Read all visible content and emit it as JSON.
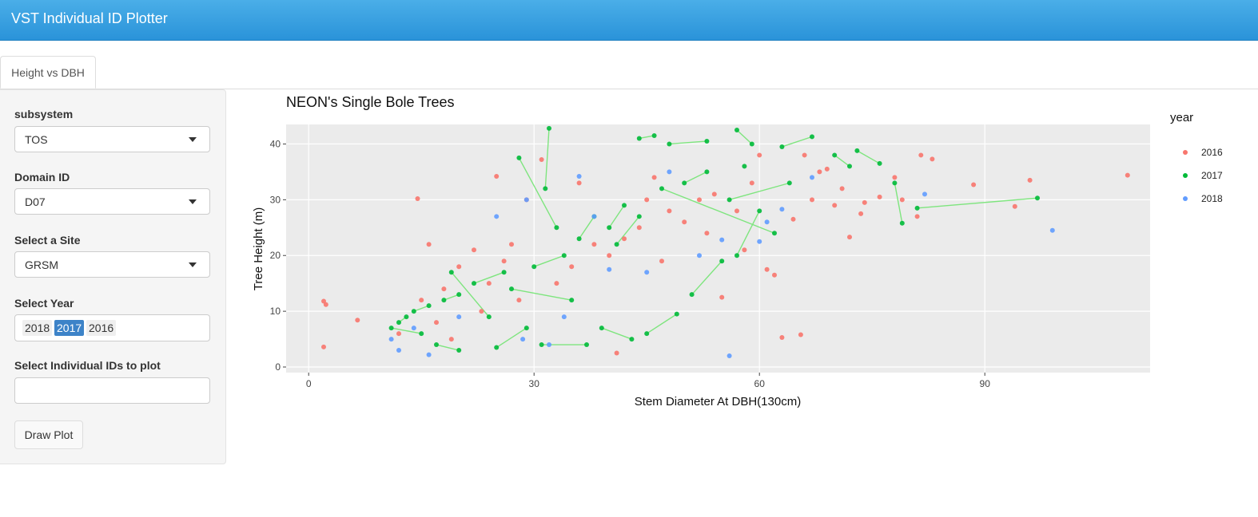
{
  "app": {
    "title": "VST Individual ID Plotter"
  },
  "tabs": [
    {
      "label": "Height vs DBH"
    }
  ],
  "sidebar": {
    "subsystem": {
      "label": "subsystem",
      "value": "TOS"
    },
    "domain": {
      "label": "Domain ID",
      "value": "D07"
    },
    "site": {
      "label": "Select a Site",
      "value": "GRSM"
    },
    "year": {
      "label": "Select Year",
      "chips": [
        "2018",
        "2017",
        "2016"
      ],
      "active": "2017"
    },
    "ids": {
      "label": "Select Individual IDs to plot",
      "value": ""
    },
    "draw_button": "Draw Plot"
  },
  "chart_data": {
    "type": "scatter",
    "title": "NEON's Single Bole Trees",
    "xlabel": "Stem Diameter At DBH(130cm)",
    "ylabel": "Tree Height (m)",
    "xlim": [
      -3,
      112
    ],
    "ylim": [
      -1,
      43.5
    ],
    "x_ticks": [
      0,
      30,
      60,
      90
    ],
    "y_ticks": [
      0,
      10,
      20,
      30,
      40
    ],
    "grid": true,
    "legend": {
      "title": "year",
      "position": "right"
    },
    "series": [
      {
        "name": "2016",
        "color": "#F8766D",
        "points": [
          [
            2,
            11.8
          ],
          [
            2.3,
            11.2
          ],
          [
            2,
            3.6
          ],
          [
            6.5,
            8.4
          ],
          [
            14.5,
            30.2
          ],
          [
            25,
            34.2
          ],
          [
            27,
            22
          ],
          [
            29,
            30
          ],
          [
            31,
            37.2
          ],
          [
            36,
            33
          ],
          [
            41,
            2.5
          ],
          [
            44,
            25
          ],
          [
            48,
            28
          ],
          [
            50,
            26
          ],
          [
            52,
            30
          ],
          [
            55,
            12.5
          ],
          [
            58,
            21
          ],
          [
            60,
            38
          ],
          [
            61,
            17.5
          ],
          [
            62,
            16.5
          ],
          [
            63,
            5.3
          ],
          [
            64.5,
            26.5
          ],
          [
            65.5,
            5.8
          ],
          [
            66,
            38
          ],
          [
            67,
            30
          ],
          [
            68,
            35
          ],
          [
            69,
            35.5
          ],
          [
            70,
            29
          ],
          [
            71,
            32
          ],
          [
            72,
            23.3
          ],
          [
            73.5,
            27.5
          ],
          [
            74,
            29.5
          ],
          [
            76,
            30.5
          ],
          [
            78,
            34
          ],
          [
            79,
            30
          ],
          [
            81,
            27
          ],
          [
            81.5,
            38
          ],
          [
            83,
            37.3
          ],
          [
            88.5,
            32.7
          ],
          [
            94,
            28.8
          ],
          [
            96,
            33.5
          ],
          [
            109,
            34.4
          ],
          [
            20,
            18
          ],
          [
            22,
            21
          ],
          [
            24,
            15
          ],
          [
            26,
            19
          ],
          [
            18,
            14
          ],
          [
            35,
            18
          ],
          [
            38,
            22
          ],
          [
            40,
            20
          ],
          [
            45,
            30
          ],
          [
            47,
            19
          ],
          [
            53,
            24
          ],
          [
            57,
            28
          ],
          [
            16,
            22
          ],
          [
            23,
            10
          ],
          [
            28,
            12
          ],
          [
            33,
            15
          ],
          [
            42,
            23
          ],
          [
            46,
            34
          ],
          [
            54,
            31
          ],
          [
            59,
            33
          ],
          [
            19,
            5
          ],
          [
            12,
            6
          ],
          [
            15,
            12
          ],
          [
            17,
            8
          ]
        ]
      },
      {
        "name": "2017",
        "color": "#00BA38",
        "points": [
          [
            32,
            42.8
          ],
          [
            31.5,
            32
          ],
          [
            33,
            25
          ],
          [
            28,
            37.5
          ],
          [
            44,
            41
          ],
          [
            46,
            41.5
          ],
          [
            48,
            40
          ],
          [
            53,
            40.5
          ],
          [
            57,
            42.5
          ],
          [
            59,
            40
          ],
          [
            63,
            39.5
          ],
          [
            67,
            41.3
          ],
          [
            70,
            38
          ],
          [
            72,
            36
          ],
          [
            73,
            38.8
          ],
          [
            76,
            36.5
          ],
          [
            78,
            33
          ],
          [
            79,
            25.8
          ],
          [
            81,
            28.5
          ],
          [
            97,
            30.3
          ],
          [
            42,
            29
          ],
          [
            40,
            25
          ],
          [
            38,
            27
          ],
          [
            36,
            23
          ],
          [
            34,
            20
          ],
          [
            30,
            18
          ],
          [
            26,
            17
          ],
          [
            22,
            15
          ],
          [
            20,
            13
          ],
          [
            18,
            12
          ],
          [
            16,
            11
          ],
          [
            14,
            10
          ],
          [
            13,
            9
          ],
          [
            12,
            8
          ],
          [
            11,
            7
          ],
          [
            15,
            6
          ],
          [
            17,
            4
          ],
          [
            20,
            3
          ],
          [
            25,
            3.5
          ],
          [
            29,
            7
          ],
          [
            31,
            4
          ],
          [
            37,
            4
          ],
          [
            39,
            7
          ],
          [
            43,
            5
          ],
          [
            45,
            6
          ],
          [
            49,
            9.5
          ],
          [
            51,
            13
          ],
          [
            55,
            19
          ],
          [
            57,
            20
          ],
          [
            60,
            28
          ],
          [
            62,
            24
          ],
          [
            47,
            32
          ],
          [
            44,
            27
          ],
          [
            41,
            22
          ],
          [
            35,
            12
          ],
          [
            27,
            14
          ],
          [
            24,
            9
          ],
          [
            19,
            17
          ],
          [
            53,
            35
          ],
          [
            50,
            33
          ],
          [
            56,
            30
          ],
          [
            64,
            33
          ],
          [
            58,
            36
          ]
        ]
      },
      {
        "name": "2018",
        "color": "#619CFF",
        "points": [
          [
            12,
            3
          ],
          [
            16,
            2.2
          ],
          [
            28.5,
            5
          ],
          [
            32,
            4
          ],
          [
            34,
            9
          ],
          [
            38,
            27
          ],
          [
            40,
            17.5
          ],
          [
            45,
            17
          ],
          [
            48,
            35
          ],
          [
            52,
            20
          ],
          [
            55,
            22.8
          ],
          [
            56,
            2
          ],
          [
            60,
            22.5
          ],
          [
            61,
            26
          ],
          [
            63,
            28.3
          ],
          [
            67,
            34
          ],
          [
            82,
            31
          ],
          [
            99,
            24.5
          ],
          [
            36,
            34.2
          ],
          [
            11,
            5
          ],
          [
            14,
            7
          ],
          [
            20,
            9
          ],
          [
            25,
            27
          ],
          [
            29,
            30
          ]
        ]
      }
    ]
  }
}
